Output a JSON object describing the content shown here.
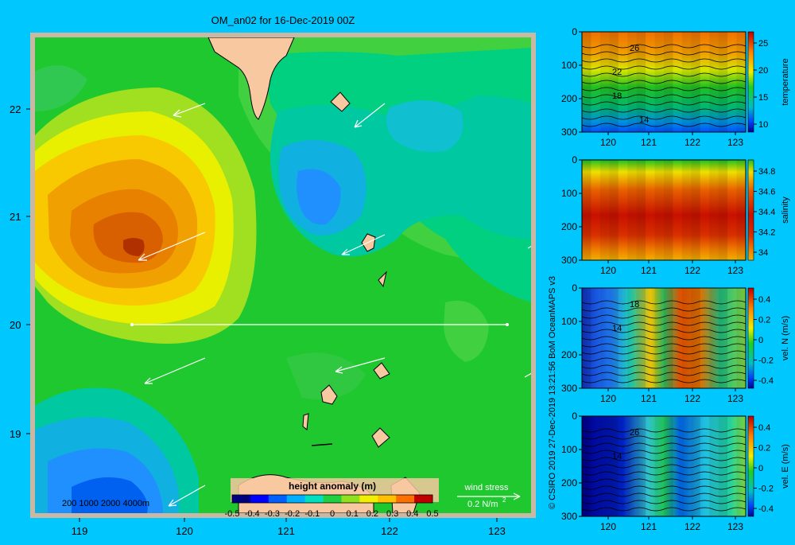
{
  "main_map": {
    "title": "OM_an02 for 16-Dec-2019 00Z",
    "x_ticks": [
      "119",
      "120",
      "121",
      "122",
      "123"
    ],
    "y_ticks": [
      "22",
      "21",
      "20",
      "19"
    ],
    "isobath_label": "200  1000  2000  4000m",
    "colorbar": {
      "title": "height anomaly (m)",
      "ticks": [
        "-0.5",
        "-0.4",
        "-0.3",
        "-0.2",
        "-0.1",
        "0",
        "0.1",
        "0.2",
        "0.3",
        "0.4",
        "0.5"
      ],
      "colors": [
        "#00007f",
        "#0000ff",
        "#0060ff",
        "#00b0ff",
        "#00e0c0",
        "#20d040",
        "#90e020",
        "#f0f000",
        "#ffc000",
        "#ff7000",
        "#c00000"
      ]
    },
    "wind_stress": {
      "label": "wind stress",
      "scale": "0.2 N/m",
      "scale_sup": "2"
    }
  },
  "side_panels": [
    {
      "name": "temperature",
      "ylabel": "temperature",
      "y_ticks": [
        "0",
        "100",
        "200",
        "300"
      ],
      "x_ticks": [
        "120",
        "121",
        "122",
        "123"
      ],
      "colorbar_ticks": [
        "25",
        "20",
        "15",
        "10"
      ],
      "contour_labels": [
        "26",
        "22",
        "18",
        "14"
      ]
    },
    {
      "name": "salinity",
      "ylabel": "salinity",
      "y_ticks": [
        "0",
        "100",
        "200",
        "300"
      ],
      "x_ticks": [
        "120",
        "121",
        "122",
        "123"
      ],
      "colorbar_ticks": [
        "34.8",
        "34.6",
        "34.4",
        "34.2",
        "34"
      ],
      "contour_labels": []
    },
    {
      "name": "vel-n",
      "ylabel": "vel. N (m/s)",
      "y_ticks": [
        "0",
        "100",
        "200",
        "300"
      ],
      "x_ticks": [
        "120",
        "121",
        "122",
        "123"
      ],
      "colorbar_ticks": [
        "0.4",
        "0.2",
        "0",
        "-0.2",
        "-0.4"
      ],
      "contour_labels": [
        "18",
        "14"
      ]
    },
    {
      "name": "vel-e",
      "ylabel": "vel. E (m/s)",
      "y_ticks": [
        "0",
        "100",
        "200",
        "300"
      ],
      "x_ticks": [
        "120",
        "121",
        "122",
        "123"
      ],
      "colorbar_ticks": [
        "0.4",
        "0.2",
        "0",
        "-0.2",
        "-0.4"
      ],
      "contour_labels": [
        "26",
        "14"
      ]
    }
  ],
  "credits": "© CSIRO 2019   27-Dec-2019 13:21:56 BoM OceanMAPS v3"
}
